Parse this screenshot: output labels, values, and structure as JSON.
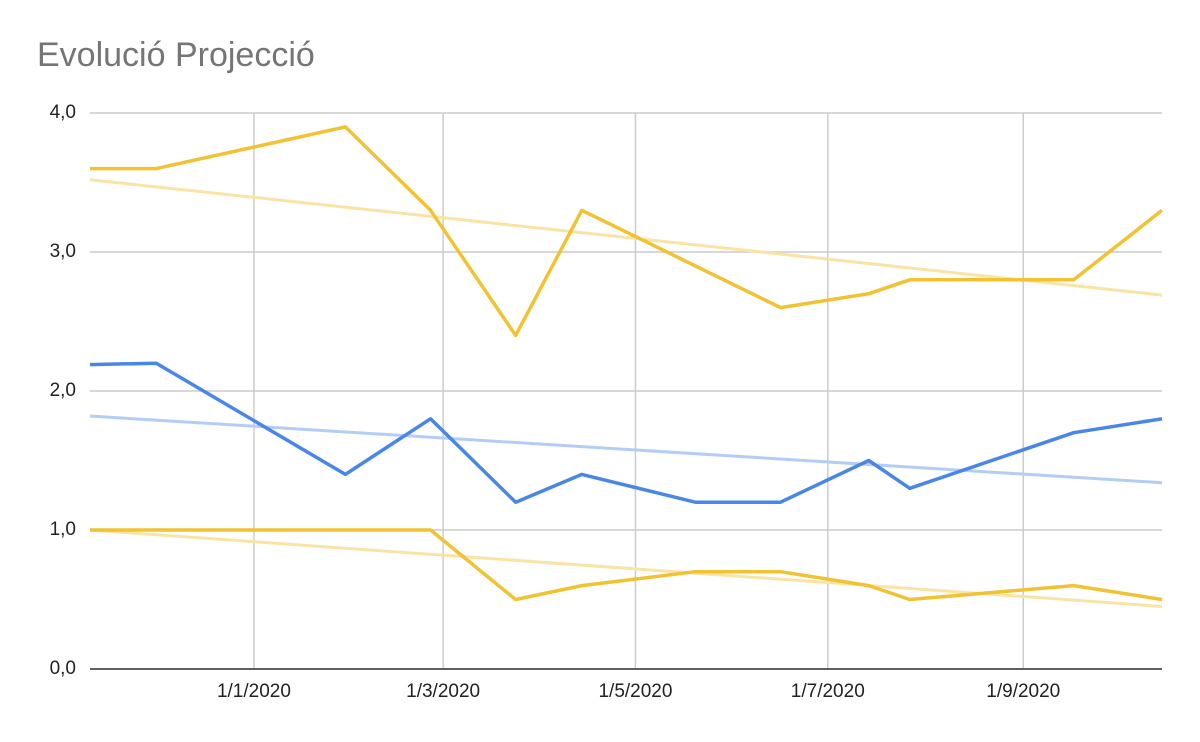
{
  "chart_data": {
    "type": "line",
    "title": "Evolució Projecció",
    "x": [
      "2019-11-10",
      "2019-12-01",
      "2020-01-30",
      "2020-02-26",
      "2020-03-24",
      "2020-04-14",
      "2020-05-20",
      "2020-06-16",
      "2020-07-14",
      "2020-07-27",
      "2020-09-17",
      "2020-10-15"
    ],
    "xlim": [
      "2019-11-10",
      "2020-10-15"
    ],
    "xticks": [
      {
        "value": "2020-01-01",
        "label": "1/1/2020"
      },
      {
        "value": "2020-03-01",
        "label": "1/3/2020"
      },
      {
        "value": "2020-05-01",
        "label": "1/5/2020"
      },
      {
        "value": "2020-07-01",
        "label": "1/7/2020"
      },
      {
        "value": "2020-09-01",
        "label": "1/9/2020"
      }
    ],
    "ylim": [
      0,
      4
    ],
    "yticks": [
      {
        "value": 0,
        "label": "0,0"
      },
      {
        "value": 1,
        "label": "1,0"
      },
      {
        "value": 2,
        "label": "2,0"
      },
      {
        "value": 3,
        "label": "3,0"
      },
      {
        "value": 4,
        "label": "4,0"
      }
    ],
    "grid": true,
    "series": [
      {
        "color": "#f1c232",
        "trendline_color": "#f9e4a6",
        "values": [
          3.6,
          3.6,
          3.9,
          3.3,
          2.4,
          3.3,
          2.9,
          2.6,
          2.7,
          2.8,
          2.8,
          3.3
        ],
        "trendline": [
          3.52,
          2.69
        ]
      },
      {
        "color": "#4a86e8",
        "trendline_color": "#b4cdf6",
        "values": [
          2.19,
          2.2,
          1.4,
          1.8,
          1.2,
          1.4,
          1.2,
          1.2,
          1.5,
          1.3,
          1.7,
          1.8
        ],
        "trendline": [
          1.82,
          1.34
        ]
      },
      {
        "color": "#f1c232",
        "trendline_color": "#f9e4a6",
        "values": [
          1.0,
          1.0,
          1.0,
          1.0,
          0.5,
          0.6,
          0.7,
          0.7,
          0.6,
          0.5,
          0.6,
          0.5
        ],
        "trendline": [
          1.0,
          0.45
        ]
      }
    ]
  }
}
